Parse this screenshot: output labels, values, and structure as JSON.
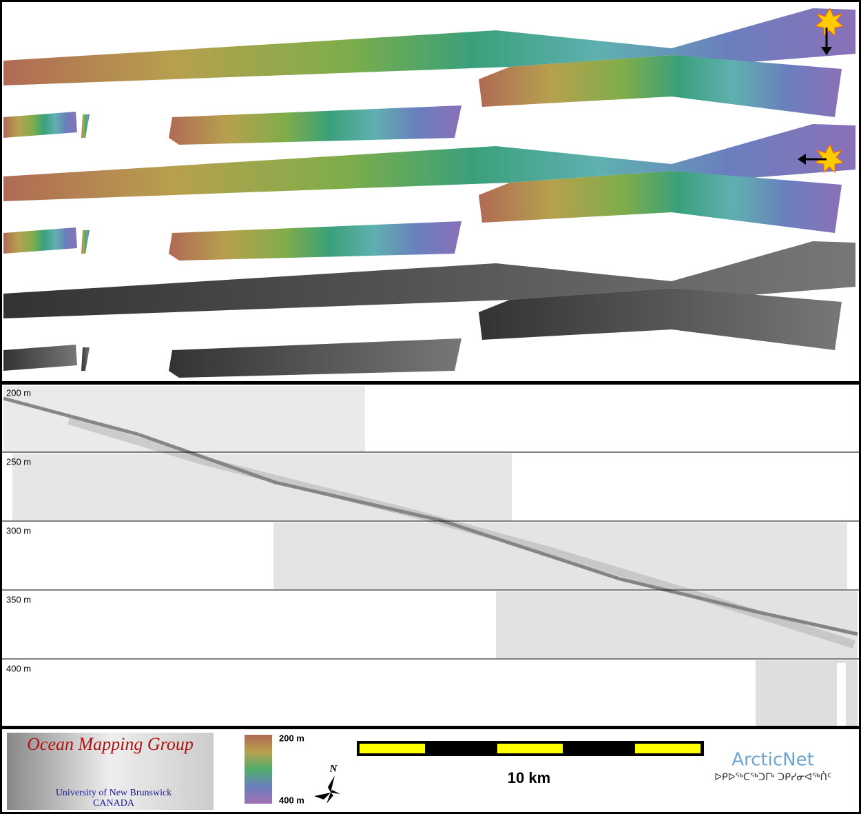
{
  "echogram": {
    "rows": [
      "200 m",
      "250 m",
      "300 m",
      "350 m",
      "400 m"
    ]
  },
  "legend": {
    "logo_title": "Ocean Mapping Group",
    "logo_subtitle": "University of New Brunswick",
    "logo_country": "CANADA",
    "colorbar_top": "200 m",
    "colorbar_bottom": "400 m",
    "north": "N",
    "scale": "10 km",
    "partner": "ArcticNet",
    "partner_syllabics": "ᐅᑭᐅᖅᑕᖅᑐᒥᒃ ᑐᑭᓯᓂᐊᖅᑏᑦ"
  }
}
